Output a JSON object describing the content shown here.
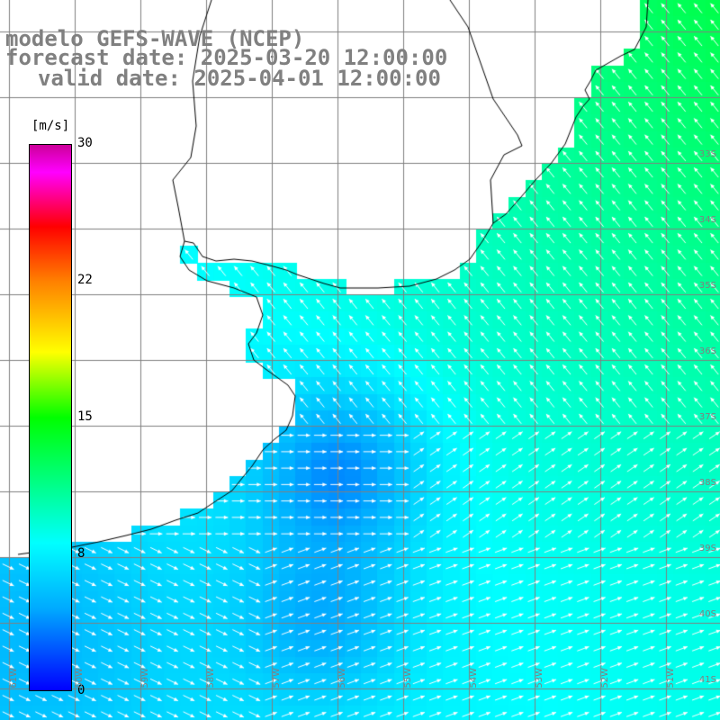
{
  "title": {
    "line1": "modelo GEFS-WAVE (NCEP)",
    "line2": "forecast date: 2025-03-20 12:00:00",
    "line3": "valid date: 2025-04-01 12:00:00"
  },
  "colorbar": {
    "unit": "[m/s]",
    "ticks": [
      "30",
      "22",
      "15",
      "8",
      "0"
    ],
    "min": 0,
    "max": 30,
    "colors": [
      "#0000ff",
      "#00aaff",
      "#00ffff",
      "#00ff00",
      "#ffff00",
      "#ff8000",
      "#ff0000",
      "#ff00ff",
      "#cc0099"
    ]
  },
  "grid": {
    "lat_labels": [
      "33S",
      "34S",
      "35S",
      "36S",
      "37S",
      "38S",
      "39S",
      "40S",
      "41S"
    ],
    "lon_labels": [
      "61W",
      "60W",
      "59W",
      "58W",
      "57W",
      "56W",
      "55W",
      "54W",
      "53W",
      "52W",
      "51W"
    ]
  },
  "colors": {
    "grid_line": "#808080",
    "coastline": "#000000",
    "arrow": "#ffffff",
    "land": "#ffffff"
  }
}
